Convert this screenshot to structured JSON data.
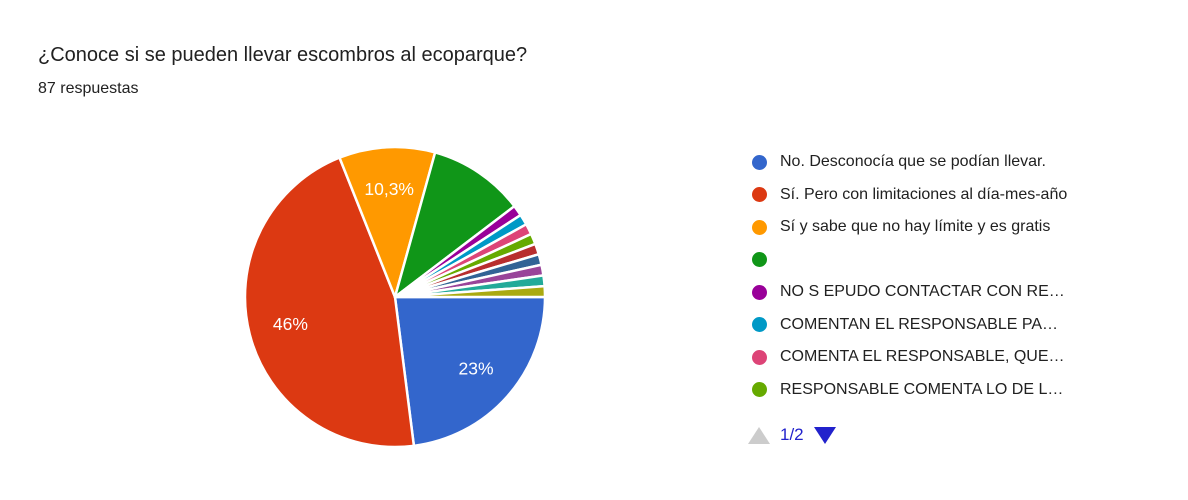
{
  "header": {
    "title": "¿Conoce si se pueden llevar escombros al ecoparque?",
    "subtitle": "87 respuestas"
  },
  "chart_data": {
    "type": "pie",
    "title": "¿Conoce si se pueden llevar escombros al ecoparque?",
    "responses_total": 87,
    "start_angle_deg": 90,
    "direction": "clockwise",
    "legend_position": "right",
    "legend_visible_count": 8,
    "slices": [
      {
        "legend_label": "No. Desconocía que se podían llevar.",
        "percent": 22.99,
        "slice_label": "23%",
        "color": "#3366CC"
      },
      {
        "legend_label": "Sí. Pero con limitaciones al día-mes-año",
        "percent": 45.98,
        "slice_label": "46%",
        "color": "#DC3912"
      },
      {
        "legend_label": "Sí y sabe que no hay límite y es gratis",
        "percent": 10.34,
        "slice_label": "10,3%",
        "color": "#FF9900"
      },
      {
        "legend_label": "",
        "percent": 10.34,
        "slice_label": "",
        "color": "#109618"
      },
      {
        "legend_label": "NO S EPUDO CONTACTAR CON RE…",
        "percent": 1.15,
        "slice_label": "",
        "color": "#990099"
      },
      {
        "legend_label": "COMENTAN EL RESPONSABLE PA…",
        "percent": 1.15,
        "slice_label": "",
        "color": "#0099C6"
      },
      {
        "legend_label": "COMENTA EL RESPONSABLE, QUE…",
        "percent": 1.15,
        "slice_label": "",
        "color": "#DD4477"
      },
      {
        "legend_label": "RESPONSABLE COMENTA LO DE L…",
        "percent": 1.15,
        "slice_label": "",
        "color": "#66AA00"
      },
      {
        "percent": 1.15,
        "slice_label": "",
        "color": "#B82E2E"
      },
      {
        "percent": 1.15,
        "slice_label": "",
        "color": "#316395"
      },
      {
        "percent": 1.15,
        "slice_label": "",
        "color": "#994499"
      },
      {
        "percent": 1.15,
        "slice_label": "",
        "color": "#22AA99"
      },
      {
        "percent": 1.15,
        "slice_label": "",
        "color": "#AAAA11"
      }
    ],
    "slice_label_color": "#ffffff",
    "slice_gap_color": "#ffffff"
  },
  "pagination": {
    "page_label": "1/2",
    "page_label_color": "#2222cc",
    "up_arrow_color": "#cccccc",
    "down_arrow_color": "#2222cc"
  }
}
